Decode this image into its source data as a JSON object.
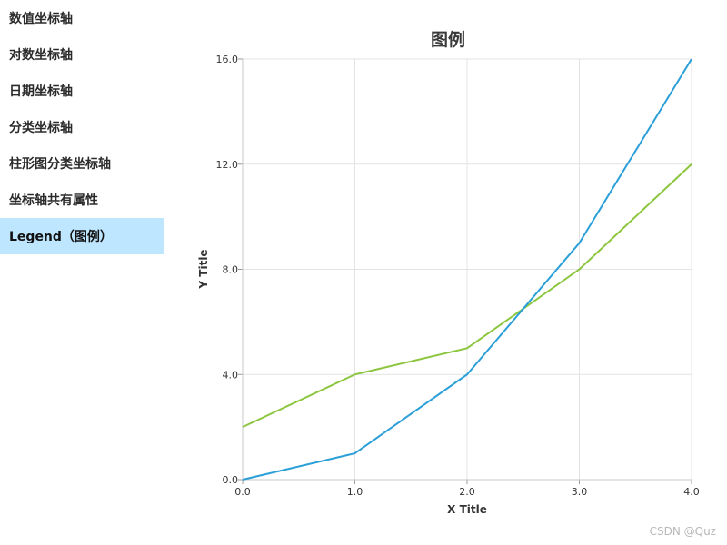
{
  "sidebar": {
    "items": [
      {
        "label": "数值坐标轴",
        "active": false
      },
      {
        "label": "对数坐标轴",
        "active": false
      },
      {
        "label": "日期坐标轴",
        "active": false
      },
      {
        "label": "分类坐标轴",
        "active": false
      },
      {
        "label": "柱形图分类坐标轴",
        "active": false
      },
      {
        "label": "坐标轴共有属性",
        "active": false
      },
      {
        "label": "Legend（图例）",
        "active": true
      }
    ],
    "active_color": "#bfe6ff"
  },
  "chart_data": {
    "type": "line",
    "title": "图例",
    "xlabel": "X Title",
    "ylabel": "Y Title",
    "x": [
      0,
      1,
      2,
      3,
      4
    ],
    "x_tick_labels": [
      "0.0",
      "1.0",
      "2.0",
      "3.0",
      "4.0"
    ],
    "y_tick_labels": [
      "0.0",
      "4.0",
      "8.0",
      "12.0",
      "16.0"
    ],
    "xlim": [
      0,
      4
    ],
    "ylim": [
      0,
      16
    ],
    "grid": true,
    "series": [
      {
        "values": [
          0,
          1,
          4,
          9,
          16
        ],
        "color": "#2a9fd8"
      },
      {
        "values": [
          2,
          4,
          5,
          8,
          12
        ],
        "color": "#8cc63f"
      }
    ]
  },
  "watermark": "CSDN @Quz"
}
